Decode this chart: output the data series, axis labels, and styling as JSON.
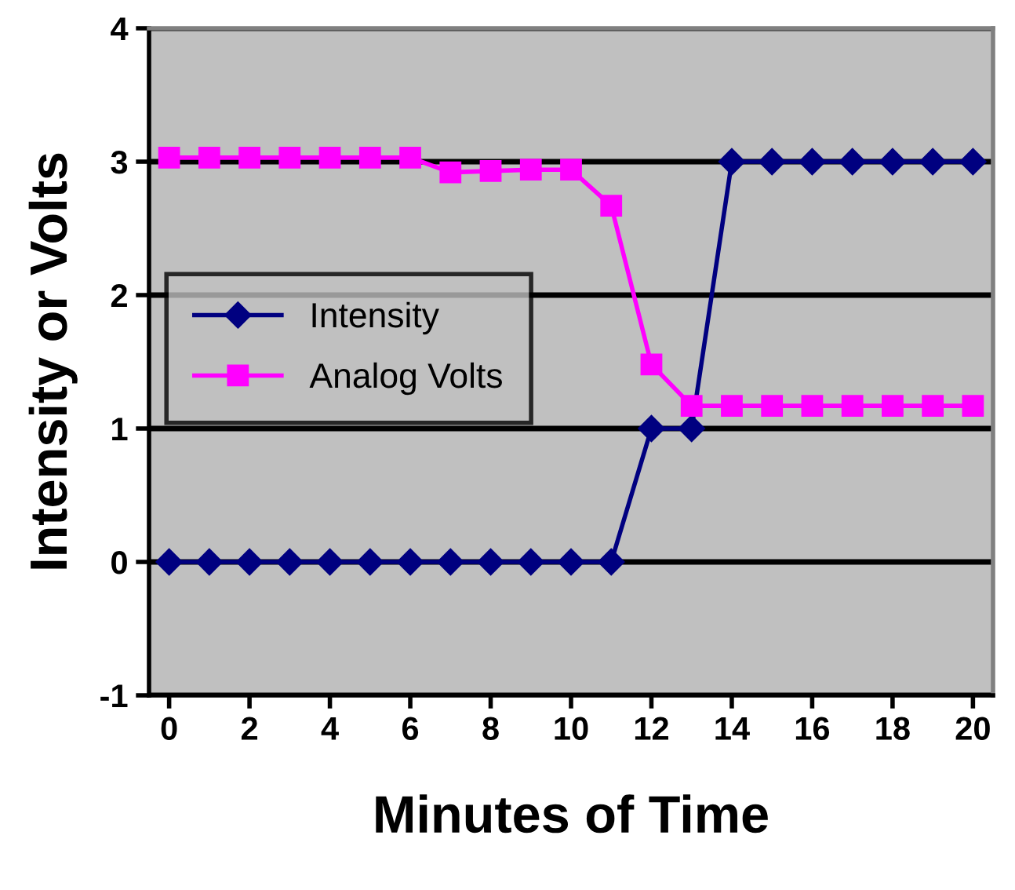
{
  "chart_data": {
    "type": "line",
    "xlabel": "Minutes of Time",
    "ylabel": "Intensity or Volts",
    "x": [
      0,
      1,
      2,
      3,
      4,
      5,
      6,
      7,
      8,
      9,
      10,
      11,
      12,
      13,
      14,
      15,
      16,
      17,
      18,
      19,
      20
    ],
    "series": [
      {
        "name": "Intensity",
        "color": "#000080",
        "marker": "diamond",
        "values": [
          0,
          0,
          0,
          0,
          0,
          0,
          0,
          0,
          0,
          0,
          0,
          0,
          1,
          1,
          3,
          3,
          3,
          3,
          3,
          3,
          3
        ]
      },
      {
        "name": "Analog Volts",
        "color": "#ff00ff",
        "marker": "square",
        "values": [
          3.03,
          3.03,
          3.03,
          3.03,
          3.03,
          3.03,
          3.03,
          2.92,
          2.93,
          2.94,
          2.94,
          2.67,
          1.48,
          1.17,
          1.17,
          1.17,
          1.17,
          1.17,
          1.17,
          1.17,
          1.17
        ]
      }
    ],
    "xlim": [
      -0.5,
      20.5
    ],
    "xticks": [
      0,
      2,
      4,
      6,
      8,
      10,
      12,
      14,
      16,
      18,
      20
    ],
    "ylim": [
      -1,
      4
    ],
    "yticks": [
      -1,
      0,
      1,
      2,
      3,
      4
    ],
    "grid": "y",
    "legend": "center left",
    "line_style": "solid"
  }
}
